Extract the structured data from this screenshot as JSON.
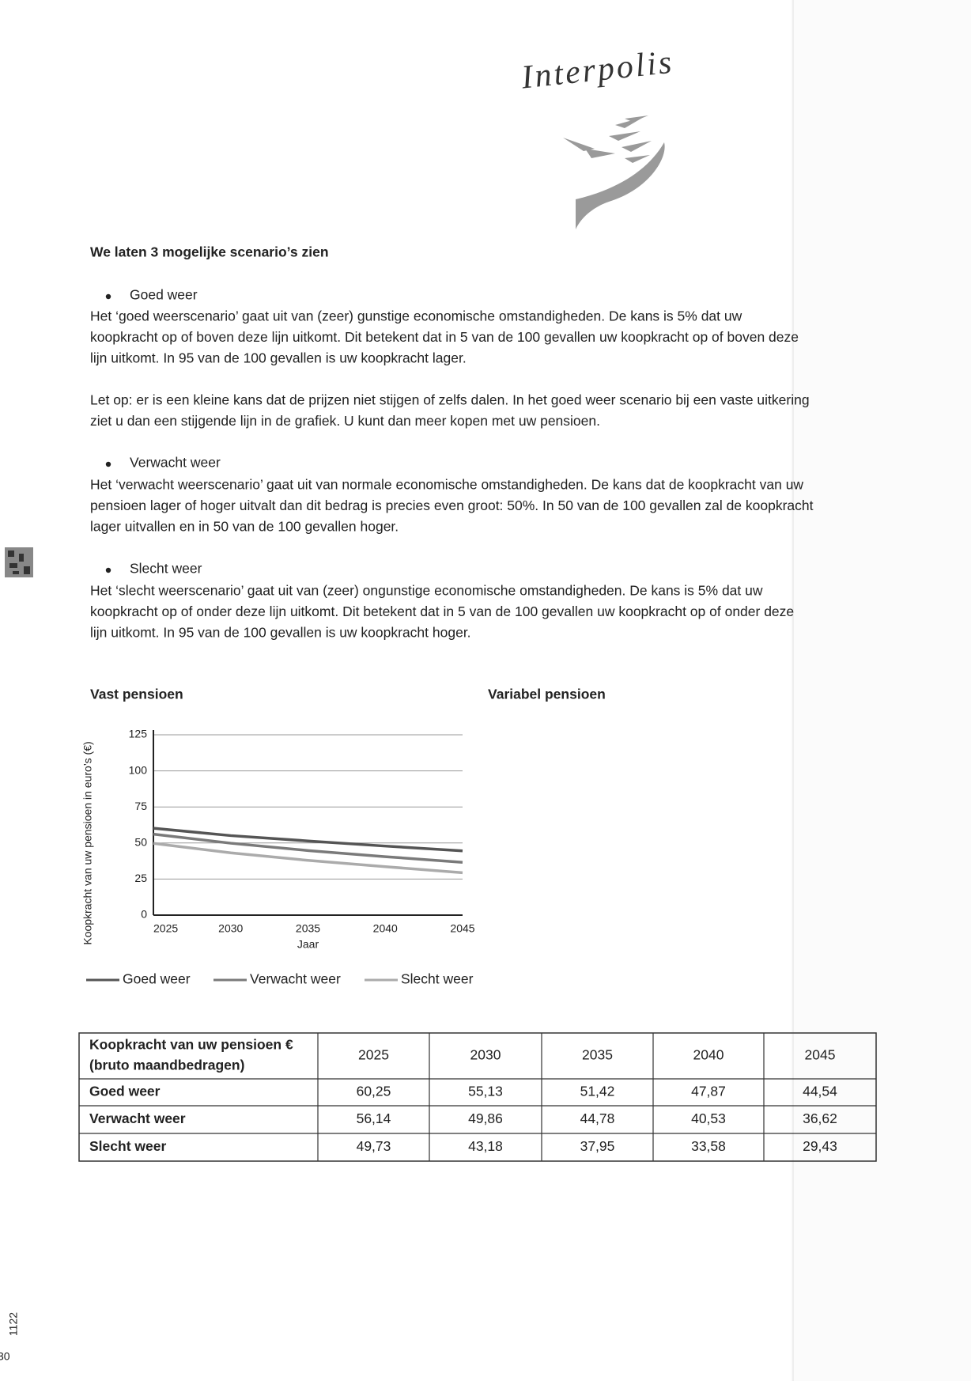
{
  "logo": "Interpolis",
  "heading": "We laten 3 mogelijke scenario’s zien",
  "scenarios": [
    {
      "title": "Goed weer",
      "color": "#555555",
      "paragraphs": [
        [
          "Het ‘goed weerscenario’ gaat uit van (zeer) gunstige economische omstandigheden. De kans is 5% dat uw",
          "koopkracht op of boven deze lijn uitkomt. Dit betekent dat in 5 van de 100 gevallen uw koopkracht op of boven deze",
          "lijn uitkomt. In 95 van de 100 gevallen is uw koopkracht lager."
        ],
        [
          "Let op: er is een kleine kans dat de prijzen niet stijgen of zelfs dalen. In het goed weer scenario bij een vaste uitkering",
          "ziet u dan een stijgende lijn in de grafiek. U kunt dan meer kopen met uw pensioen."
        ]
      ]
    },
    {
      "title": "Verwacht weer",
      "color": "#7a7a7a",
      "paragraphs": [
        [
          "Het ‘verwacht weerscenario’ gaat uit van normale economische omstandigheden. De kans dat de koopkracht van uw",
          "pensioen lager of hoger uitvalt dan dit bedrag is precies even groot: 50%. In 50 van de 100 gevallen zal de koopkracht",
          "lager uitvallen en in 50 van de 100 gevallen hoger."
        ]
      ]
    },
    {
      "title": "Slecht weer",
      "color": "#ababab",
      "paragraphs": [
        [
          "Het ‘slecht weerscenario’ gaat uit van (zeer) ongunstige economische omstandigheden. De kans is 5% dat uw",
          "koopkracht op of onder deze lijn uitkomt. Dit betekent dat in 5 van de 100 gevallen uw koopkracht op of onder deze",
          "lijn uitkomt. In 95 van de 100 gevallen is uw koopkracht hoger."
        ]
      ]
    }
  ],
  "chart_data": {
    "type": "line",
    "title": "Vast pensioen",
    "x_label": "Jaar",
    "y_label": "Koopkracht van uw pensioen in euro’s (€)",
    "x": [
      2025,
      2030,
      2035,
      2040,
      2045
    ],
    "xlim": [
      2025,
      2045
    ],
    "xticks": [
      2025,
      2030,
      2035,
      2040,
      2045
    ],
    "ylim": [
      0,
      125
    ],
    "yticks": [
      0,
      25,
      50,
      75,
      100,
      125
    ],
    "grid": true,
    "legend": "bottom",
    "series": [
      {
        "name": "Goed weer",
        "color": "#555555",
        "values": [
          60.25,
          55.13,
          51.42,
          47.87,
          44.54
        ]
      },
      {
        "name": "Verwacht weer",
        "color": "#7a7a7a",
        "values": [
          56.14,
          49.86,
          44.78,
          40.53,
          36.62
        ]
      },
      {
        "name": "Slecht weer",
        "color": "#ababab",
        "values": [
          49.73,
          43.18,
          37.95,
          33.58,
          29.43
        ]
      }
    ]
  },
  "variabel_title": "Variabel pensioen",
  "table": {
    "corner": [
      "Koopkracht van uw pensioen €",
      "(bruto maandbedragen)"
    ],
    "columns": [
      "2025",
      "2030",
      "2035",
      "2040",
      "2045"
    ],
    "rows": [
      {
        "label": "Goed weer",
        "values": [
          "60,25",
          "55,13",
          "51,42",
          "47,87",
          "44,54"
        ]
      },
      {
        "label": "Verwacht weer",
        "values": [
          "56,14",
          "49,86",
          "44,78",
          "40,53",
          "36,62"
        ]
      },
      {
        "label": "Slecht weer",
        "values": [
          "49,73",
          "43,18",
          "37,95",
          "33,58",
          "29,43"
        ]
      }
    ]
  },
  "margin": {
    "code": "1122",
    "page": "30"
  }
}
